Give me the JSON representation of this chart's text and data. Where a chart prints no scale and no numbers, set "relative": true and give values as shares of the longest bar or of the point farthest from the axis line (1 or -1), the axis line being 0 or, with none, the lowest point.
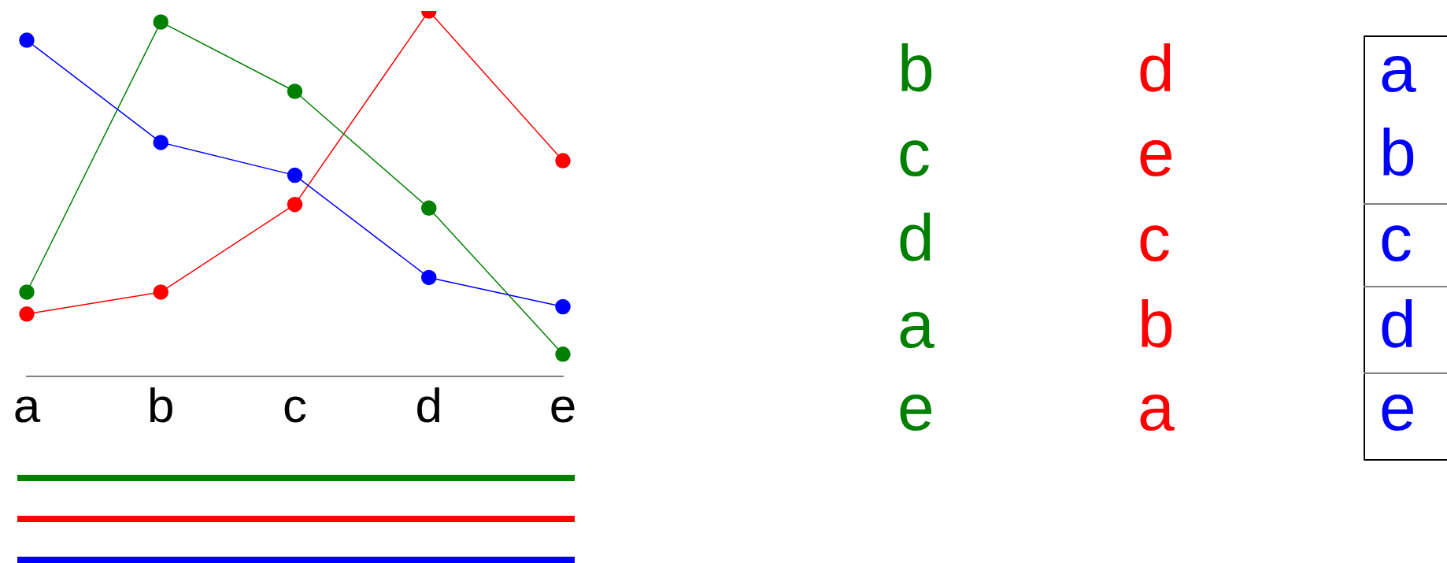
{
  "chart_data": [
    {
      "type": "line",
      "relative": true,
      "marker": "circle",
      "line_style": "solid",
      "grid": false,
      "legend": false,
      "categories": [
        "a",
        "b",
        "c",
        "d",
        "e"
      ],
      "series": [
        {
          "color": "#0000ff",
          "values": [
            0.92,
            0.64,
            0.55,
            0.27,
            0.19
          ]
        },
        {
          "color": "#008000",
          "values": [
            0.23,
            0.97,
            0.78,
            0.46,
            0.06
          ]
        },
        {
          "color": "#ff0000",
          "values": [
            0.17,
            0.23,
            0.47,
            1.0,
            0.59
          ]
        }
      ]
    },
    {
      "type": "other",
      "annotations": [
        "b",
        "c",
        "d",
        "a",
        "e",
        "d",
        "e",
        "c",
        "b",
        "a",
        "a",
        "b",
        "c",
        "d",
        "e"
      ],
      "colors": [
        "#008000",
        "#008000",
        "#008000",
        "#008000",
        "#008000",
        "#ff0000",
        "#ff0000",
        "#ff0000",
        "#ff0000",
        "#ff0000",
        "#0000ff",
        "#0000ff",
        "#0000ff",
        "#0000ff",
        "#0000ff"
      ]
    }
  ]
}
